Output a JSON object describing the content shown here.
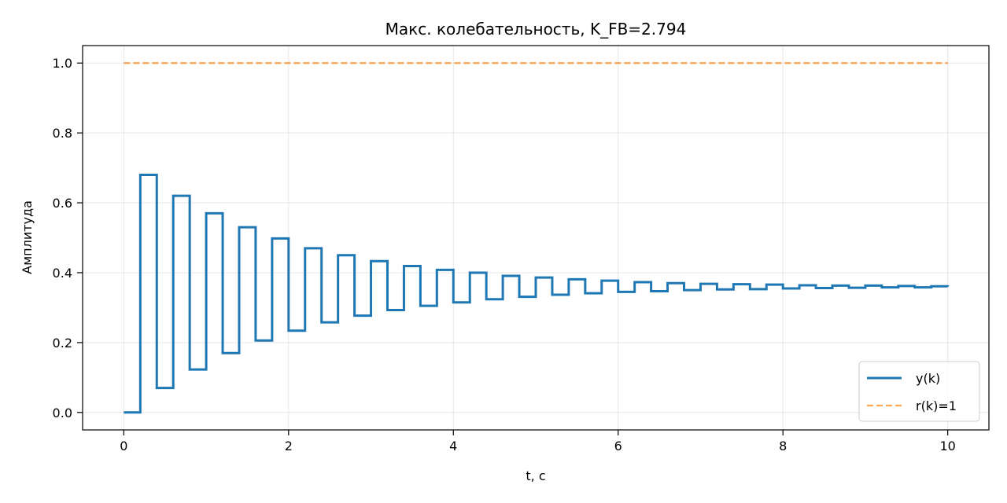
{
  "chart_data": {
    "type": "line",
    "title": "Макс. колебательность, K_FB=2.794",
    "xlabel": "t, с",
    "ylabel": "Амплитуда",
    "xlim": [
      -0.5,
      10.5
    ],
    "ylim": [
      -0.05,
      1.05
    ],
    "xticks": [
      0,
      2,
      4,
      6,
      8,
      10
    ],
    "xtick_labels": [
      "0",
      "2",
      "4",
      "6",
      "8",
      "10"
    ],
    "yticks": [
      0.0,
      0.2,
      0.4,
      0.6,
      0.8,
      1.0
    ],
    "ytick_labels": [
      "0.0",
      "0.2",
      "0.4",
      "0.6",
      "0.8",
      "1.0"
    ],
    "grid": true,
    "legend_position": "lower-right",
    "series": [
      {
        "name": "y(k)",
        "style": "steps-post",
        "color": "#1f77b4",
        "x": [
          0.0,
          0.2,
          0.4,
          0.6,
          0.8,
          1.0,
          1.2,
          1.4,
          1.6,
          1.8,
          2.0,
          2.2,
          2.4,
          2.6,
          2.8,
          3.0,
          3.2,
          3.4,
          3.6,
          3.8,
          4.0,
          4.2,
          4.4,
          4.6,
          4.8,
          5.0,
          5.2,
          5.4,
          5.6,
          5.8,
          6.0,
          6.2,
          6.4,
          6.6,
          6.8,
          7.0,
          7.2,
          7.4,
          7.6,
          7.8,
          8.0,
          8.2,
          8.4,
          8.6,
          8.8,
          9.0,
          9.2,
          9.4,
          9.6,
          9.8,
          10.0
        ],
        "values": [
          0.0,
          0.68,
          0.07,
          0.62,
          0.123,
          0.57,
          0.17,
          0.53,
          0.206,
          0.498,
          0.234,
          0.47,
          0.258,
          0.45,
          0.277,
          0.433,
          0.293,
          0.419,
          0.305,
          0.408,
          0.315,
          0.4,
          0.324,
          0.391,
          0.331,
          0.386,
          0.337,
          0.381,
          0.341,
          0.377,
          0.345,
          0.373,
          0.347,
          0.37,
          0.35,
          0.368,
          0.352,
          0.367,
          0.353,
          0.366,
          0.355,
          0.364,
          0.356,
          0.363,
          0.357,
          0.363,
          0.358,
          0.362,
          0.358,
          0.361,
          0.36
        ]
      },
      {
        "name": "r(k)=1",
        "style": "dashed",
        "color": "#ff7f0e",
        "x": [
          0,
          10
        ],
        "values": [
          1,
          1
        ]
      }
    ]
  }
}
